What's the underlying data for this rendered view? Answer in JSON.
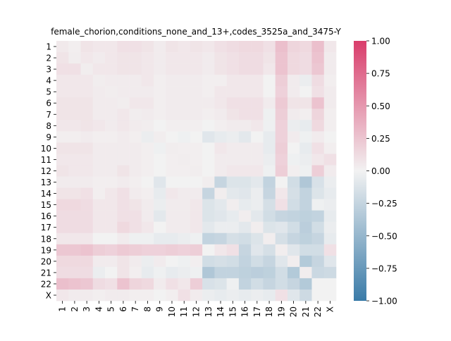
{
  "chart_data": {
    "type": "heatmap",
    "title": "female_chorion,conditions_none_and_13+,codes_3525a_and_3475-Y",
    "xlabel": "",
    "ylabel": "",
    "x_labels": [
      "1",
      "2",
      "3",
      "4",
      "5",
      "6",
      "7",
      "8",
      "9",
      "10",
      "11",
      "12",
      "13",
      "14",
      "15",
      "16",
      "17",
      "18",
      "19",
      "20",
      "21",
      "22",
      "X"
    ],
    "y_labels": [
      "1",
      "2",
      "3",
      "4",
      "5",
      "6",
      "7",
      "8",
      "9",
      "10",
      "11",
      "12",
      "13",
      "14",
      "15",
      "16",
      "17",
      "18",
      "19",
      "20",
      "21",
      "22",
      "X"
    ],
    "colorbar": {
      "min": -1.0,
      "max": 1.0,
      "ticks": [
        "1.00",
        "0.75",
        "0.50",
        "0.25",
        "0.00",
        "−0.25",
        "−0.50",
        "−0.75",
        "−1.00"
      ],
      "tick_values": [
        1.0,
        0.75,
        0.5,
        0.25,
        0.0,
        -0.25,
        -0.5,
        -0.75,
        -1.0
      ]
    },
    "colormap": {
      "negative": "#3a7ba8",
      "center": "#f2f2f2",
      "positive": "#d93d6b"
    },
    "values": [
      [
        0.05,
        0.02,
        0.08,
        0.06,
        0.06,
        0.1,
        0.1,
        0.08,
        0.04,
        0.08,
        0.06,
        0.08,
        0.06,
        0.1,
        0.12,
        0.14,
        0.14,
        0.1,
        0.28,
        0.16,
        0.14,
        0.28,
        0.06
      ],
      [
        0.08,
        0.03,
        0.06,
        0.04,
        0.06,
        0.08,
        0.08,
        0.06,
        0.04,
        0.06,
        0.06,
        0.06,
        0.04,
        0.08,
        0.1,
        0.12,
        0.12,
        0.08,
        0.26,
        0.14,
        0.12,
        0.26,
        0.04
      ],
      [
        0.1,
        0.1,
        0.03,
        0.06,
        0.06,
        0.08,
        0.08,
        0.06,
        0.04,
        0.06,
        0.06,
        0.06,
        0.04,
        0.08,
        0.1,
        0.12,
        0.12,
        0.06,
        0.26,
        0.14,
        0.12,
        0.24,
        0.04
      ],
      [
        0.06,
        0.06,
        0.06,
        0.03,
        0.04,
        0.04,
        0.04,
        0.06,
        0.02,
        0.04,
        0.04,
        0.04,
        0.02,
        0.02,
        0.06,
        0.06,
        0.06,
        0.0,
        0.2,
        0.04,
        -0.04,
        0.12,
        0.02
      ],
      [
        0.06,
        0.06,
        0.06,
        0.04,
        0.03,
        0.04,
        0.04,
        0.04,
        0.02,
        0.04,
        0.04,
        0.04,
        0.02,
        0.06,
        0.06,
        0.06,
        0.06,
        0.0,
        0.18,
        0.04,
        0.0,
        0.1,
        0.04
      ],
      [
        0.08,
        0.08,
        0.08,
        0.04,
        0.04,
        0.03,
        0.06,
        0.06,
        0.02,
        0.04,
        0.04,
        0.04,
        0.04,
        0.06,
        0.1,
        0.1,
        0.1,
        0.04,
        0.22,
        0.08,
        0.08,
        0.26,
        0.04
      ],
      [
        0.08,
        0.08,
        0.08,
        0.04,
        0.04,
        0.06,
        0.03,
        0.04,
        0.02,
        0.04,
        0.04,
        0.04,
        0.02,
        0.04,
        0.08,
        0.1,
        0.1,
        -0.02,
        0.2,
        0.04,
        0.02,
        0.16,
        0.02
      ],
      [
        0.06,
        0.06,
        0.08,
        0.06,
        0.04,
        0.06,
        0.04,
        0.03,
        0.0,
        0.02,
        0.02,
        0.02,
        0.0,
        0.02,
        0.04,
        0.04,
        0.06,
        -0.02,
        0.18,
        -0.04,
        -0.06,
        0.14,
        0.02
      ],
      [
        0.02,
        0.02,
        0.04,
        0.02,
        0.02,
        0.04,
        0.02,
        -0.04,
        0.03,
        0.0,
        -0.02,
        0.0,
        -0.1,
        -0.06,
        -0.04,
        -0.08,
        0.0,
        -0.06,
        0.18,
        0.04,
        -0.02,
        0.04,
        0.0
      ],
      [
        0.08,
        0.08,
        0.08,
        0.04,
        0.04,
        0.04,
        0.04,
        0.02,
        -0.02,
        0.03,
        0.02,
        0.02,
        0.0,
        0.06,
        0.04,
        0.04,
        0.04,
        -0.06,
        0.2,
        0.0,
        -0.06,
        0.1,
        0.02
      ],
      [
        0.06,
        0.06,
        0.06,
        0.04,
        0.04,
        0.04,
        0.04,
        0.02,
        0.0,
        0.02,
        0.03,
        0.02,
        0.0,
        0.04,
        0.04,
        0.04,
        0.04,
        -0.04,
        0.18,
        -0.02,
        -0.04,
        0.06,
        0.1
      ],
      [
        0.08,
        0.06,
        0.06,
        0.04,
        0.04,
        0.08,
        0.04,
        0.02,
        0.0,
        0.02,
        0.02,
        0.03,
        0.0,
        0.04,
        0.06,
        0.06,
        0.06,
        -0.02,
        0.2,
        0.02,
        -0.02,
        0.2,
        0.04
      ],
      [
        0.04,
        0.04,
        0.04,
        0.02,
        0.02,
        0.04,
        0.02,
        0.0,
        -0.1,
        0.0,
        0.0,
        0.0,
        0.03,
        -0.24,
        -0.12,
        -0.12,
        -0.08,
        -0.26,
        0.0,
        -0.18,
        -0.36,
        -0.14,
        -0.04
      ],
      [
        0.08,
        0.08,
        0.1,
        0.02,
        0.06,
        0.1,
        0.04,
        0.02,
        -0.06,
        0.06,
        0.04,
        0.04,
        -0.24,
        0.03,
        -0.08,
        -0.1,
        -0.04,
        -0.24,
        0.06,
        -0.16,
        -0.26,
        -0.12,
        -0.06
      ],
      [
        0.14,
        0.14,
        0.12,
        0.06,
        0.06,
        0.1,
        0.08,
        0.04,
        -0.04,
        0.04,
        0.04,
        0.06,
        -0.12,
        -0.08,
        0.03,
        -0.06,
        -0.04,
        -0.16,
        0.1,
        -0.18,
        -0.26,
        -0.02,
        -0.04
      ],
      [
        0.12,
        0.12,
        0.12,
        0.06,
        0.06,
        0.1,
        0.1,
        0.04,
        -0.08,
        0.04,
        0.04,
        0.06,
        -0.12,
        -0.1,
        -0.06,
        0.03,
        -0.08,
        -0.18,
        -0.24,
        -0.26,
        -0.28,
        -0.26,
        -0.06
      ],
      [
        0.12,
        0.12,
        0.12,
        0.06,
        0.06,
        0.14,
        0.1,
        0.06,
        0.0,
        0.04,
        0.04,
        0.06,
        -0.08,
        -0.04,
        -0.04,
        -0.08,
        0.03,
        -0.12,
        -0.1,
        -0.18,
        -0.3,
        -0.18,
        -0.04
      ],
      [
        0.06,
        0.06,
        0.06,
        0.0,
        0.0,
        0.04,
        -0.02,
        -0.02,
        -0.06,
        -0.06,
        -0.04,
        -0.02,
        -0.26,
        -0.24,
        -0.16,
        -0.18,
        -0.12,
        0.03,
        -0.16,
        -0.24,
        -0.28,
        -0.24,
        -0.06
      ],
      [
        0.24,
        0.24,
        0.26,
        0.2,
        0.18,
        0.22,
        0.2,
        0.18,
        0.18,
        0.2,
        0.18,
        0.2,
        0.0,
        0.06,
        0.1,
        -0.24,
        -0.1,
        -0.16,
        0.03,
        -0.1,
        -0.18,
        -0.18,
        0.1
      ],
      [
        0.14,
        0.14,
        0.14,
        0.04,
        0.04,
        0.08,
        0.04,
        -0.04,
        0.04,
        0.0,
        -0.02,
        0.02,
        -0.18,
        -0.16,
        -0.18,
        -0.26,
        -0.18,
        -0.24,
        -0.1,
        0.03,
        -0.34,
        -0.24,
        -0.1
      ],
      [
        0.12,
        0.12,
        0.12,
        -0.04,
        0.0,
        0.08,
        0.02,
        -0.06,
        -0.02,
        -0.06,
        -0.04,
        -0.02,
        -0.36,
        -0.26,
        -0.26,
        -0.28,
        -0.3,
        -0.28,
        -0.18,
        -0.34,
        0.03,
        -0.22,
        -0.2
      ],
      [
        0.28,
        0.26,
        0.24,
        0.12,
        0.1,
        0.26,
        0.16,
        0.14,
        0.04,
        0.1,
        0.06,
        0.2,
        -0.14,
        -0.12,
        -0.02,
        -0.26,
        -0.18,
        -0.24,
        -0.18,
        -0.24,
        -0.34,
        0.0,
        0.0
      ],
      [
        0.06,
        0.04,
        0.04,
        0.02,
        0.04,
        0.04,
        0.02,
        0.02,
        0.0,
        0.02,
        0.1,
        0.04,
        -0.04,
        -0.06,
        -0.04,
        -0.06,
        -0.04,
        -0.06,
        0.1,
        -0.1,
        -0.2,
        0.0,
        0.0
      ]
    ]
  }
}
